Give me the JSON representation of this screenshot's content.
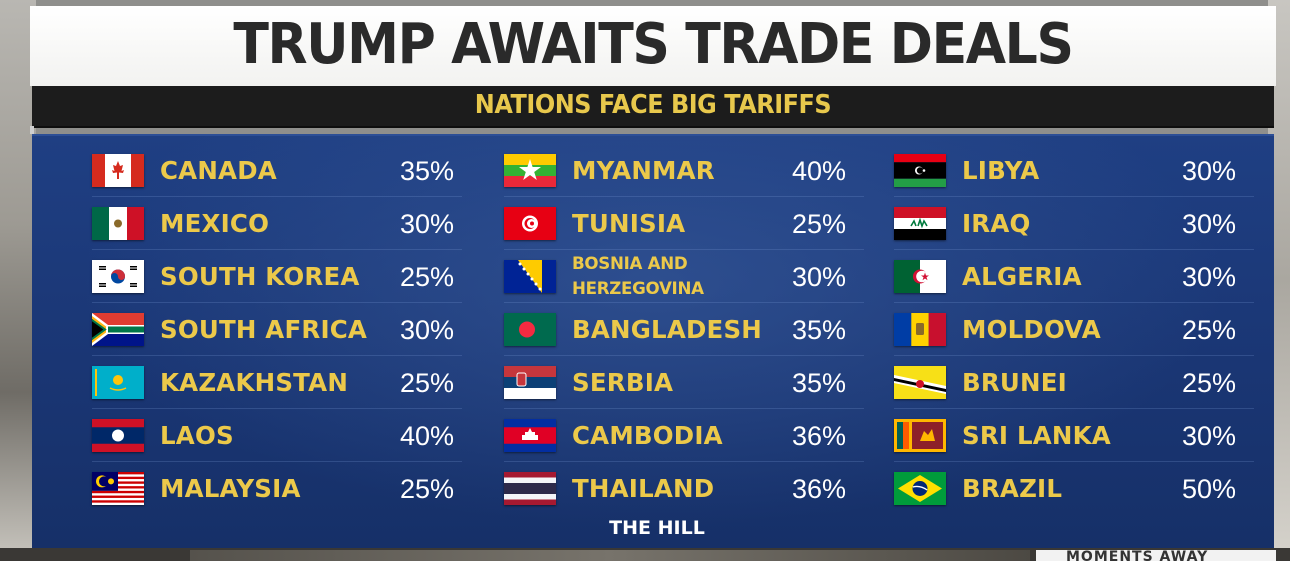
{
  "title": "TRUMP AWAITS TRADE DEALS",
  "subtitle": "NATIONS FACE BIG TARIFFS",
  "source": "THE HILL",
  "ticker": "MOMENTS AWAY",
  "columns": [
    {
      "rows": [
        {
          "country": "CANADA",
          "tariff": "35%",
          "flag": "canada-flag-icon"
        },
        {
          "country": "MEXICO",
          "tariff": "30%",
          "flag": "mexico-flag-icon"
        },
        {
          "country": "SOUTH KOREA",
          "tariff": "25%",
          "flag": "south-korea-flag-icon"
        },
        {
          "country": "SOUTH AFRICA",
          "tariff": "30%",
          "flag": "south-africa-flag-icon"
        },
        {
          "country": "KAZAKHSTAN",
          "tariff": "25%",
          "flag": "kazakhstan-flag-icon"
        },
        {
          "country": "LAOS",
          "tariff": "40%",
          "flag": "laos-flag-icon"
        },
        {
          "country": "MALAYSIA",
          "tariff": "25%",
          "flag": "malaysia-flag-icon"
        }
      ]
    },
    {
      "rows": [
        {
          "country": "MYANMAR",
          "tariff": "40%",
          "flag": "myanmar-flag-icon"
        },
        {
          "country": "TUNISIA",
          "tariff": "25%",
          "flag": "tunisia-flag-icon"
        },
        {
          "country_line1": "BOSNIA AND",
          "country_line2": "HERZEGOVINA",
          "tariff": "30%",
          "flag": "bosnia-flag-icon"
        },
        {
          "country": "BANGLADESH",
          "tariff": "35%",
          "flag": "bangladesh-flag-icon"
        },
        {
          "country": "SERBIA",
          "tariff": "35%",
          "flag": "serbia-flag-icon"
        },
        {
          "country": "CAMBODIA",
          "tariff": "36%",
          "flag": "cambodia-flag-icon"
        },
        {
          "country": "THAILAND",
          "tariff": "36%",
          "flag": "thailand-flag-icon"
        }
      ]
    },
    {
      "rows": [
        {
          "country": "LIBYA",
          "tariff": "30%",
          "flag": "libya-flag-icon"
        },
        {
          "country": "IRAQ",
          "tariff": "30%",
          "flag": "iraq-flag-icon"
        },
        {
          "country": "ALGERIA",
          "tariff": "30%",
          "flag": "algeria-flag-icon"
        },
        {
          "country": "MOLDOVA",
          "tariff": "25%",
          "flag": "moldova-flag-icon"
        },
        {
          "country": "BRUNEI",
          "tariff": "25%",
          "flag": "brunei-flag-icon"
        },
        {
          "country": "SRI LANKA",
          "tariff": "30%",
          "flag": "sri-lanka-flag-icon"
        },
        {
          "country": "BRAZIL",
          "tariff": "50%",
          "flag": "brazil-flag-icon"
        }
      ]
    }
  ]
}
